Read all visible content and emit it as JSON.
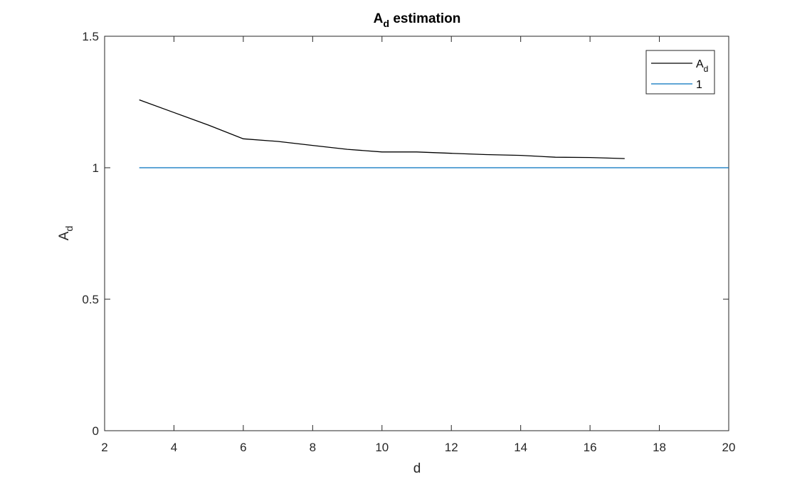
{
  "chart_data": {
    "type": "line",
    "title": {
      "main": "A",
      "sub": "d",
      "rest": " estimation"
    },
    "xlabel": "d",
    "ylabel": {
      "main": "A",
      "sub": "d"
    },
    "xlim": [
      2,
      20
    ],
    "ylim": [
      0,
      1.5
    ],
    "xticks": [
      2,
      4,
      6,
      8,
      10,
      12,
      14,
      16,
      18,
      20
    ],
    "yticks": [
      0,
      0.5,
      1,
      1.5
    ],
    "xtick_labels": [
      "2",
      "4",
      "6",
      "8",
      "10",
      "12",
      "14",
      "16",
      "18",
      "20"
    ],
    "ytick_labels": [
      "0",
      "0.5",
      "1",
      "1.5"
    ],
    "grid": false,
    "legend_position": "top-right",
    "series": [
      {
        "name": {
          "main": "A",
          "sub": "d"
        },
        "color": "#000000",
        "x": [
          3,
          4,
          5,
          6,
          7,
          8,
          9,
          10,
          11,
          12,
          13,
          14,
          15,
          16,
          17
        ],
        "y": [
          1.258,
          1.21,
          1.162,
          1.11,
          1.1,
          1.085,
          1.07,
          1.06,
          1.06,
          1.055,
          1.05,
          1.047,
          1.04,
          1.039,
          1.035
        ]
      },
      {
        "name": {
          "main": "1",
          "sub": ""
        },
        "color": "#0072BD",
        "x": [
          3,
          20
        ],
        "y": [
          1,
          1
        ]
      }
    ]
  }
}
